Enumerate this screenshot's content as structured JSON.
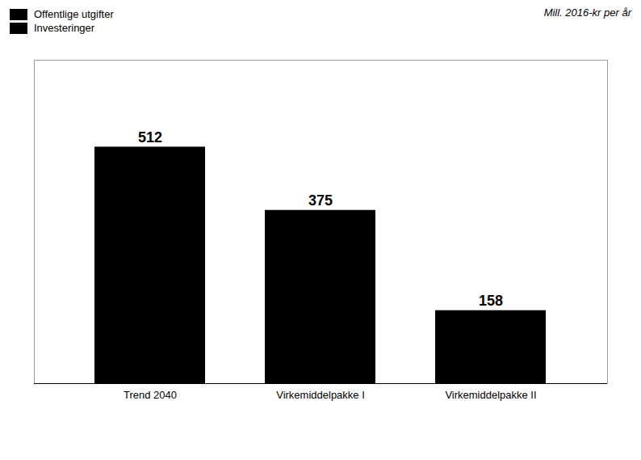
{
  "chart_data": {
    "type": "bar",
    "subtitle": "Mill. 2016-kr per år",
    "categories": [
      "Trend 2040",
      "Virkemiddelpakke I",
      "Virkemiddelpakke II"
    ],
    "values": [
      512,
      375,
      158
    ],
    "ylim": [
      0,
      700
    ],
    "yticks": [],
    "data_labels": true,
    "tick_labels": "x",
    "legend": "top-left",
    "legend_labels": [
      "Offentlige utgifter",
      "Investeringer"
    ]
  }
}
